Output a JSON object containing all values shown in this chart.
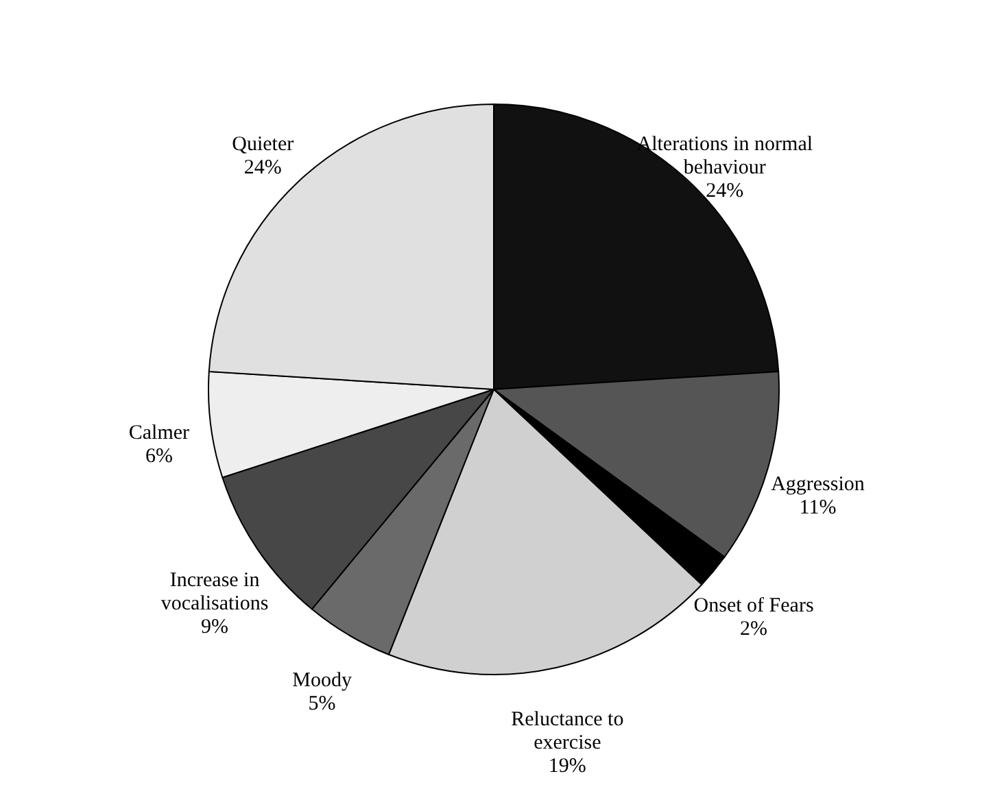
{
  "chart_data": {
    "type": "pie",
    "categories": [
      "Alterations in normal behaviour",
      "Aggression",
      "Onset of Fears",
      "Reluctance to exercise",
      "Moody",
      "Increase in vocalisations",
      "Calmer",
      "Quieter"
    ],
    "values": [
      24,
      11,
      2,
      19,
      5,
      9,
      6,
      24
    ],
    "value_labels": [
      "24%",
      "11%",
      "2%",
      "19%",
      "5%",
      "9%",
      "6%",
      "24%"
    ],
    "colors": [
      "#111111",
      "#555555",
      "#000000",
      "#d0d0d0",
      "#6a6a6a",
      "#474747",
      "#eeeeee",
      "#e0e0e0"
    ]
  }
}
